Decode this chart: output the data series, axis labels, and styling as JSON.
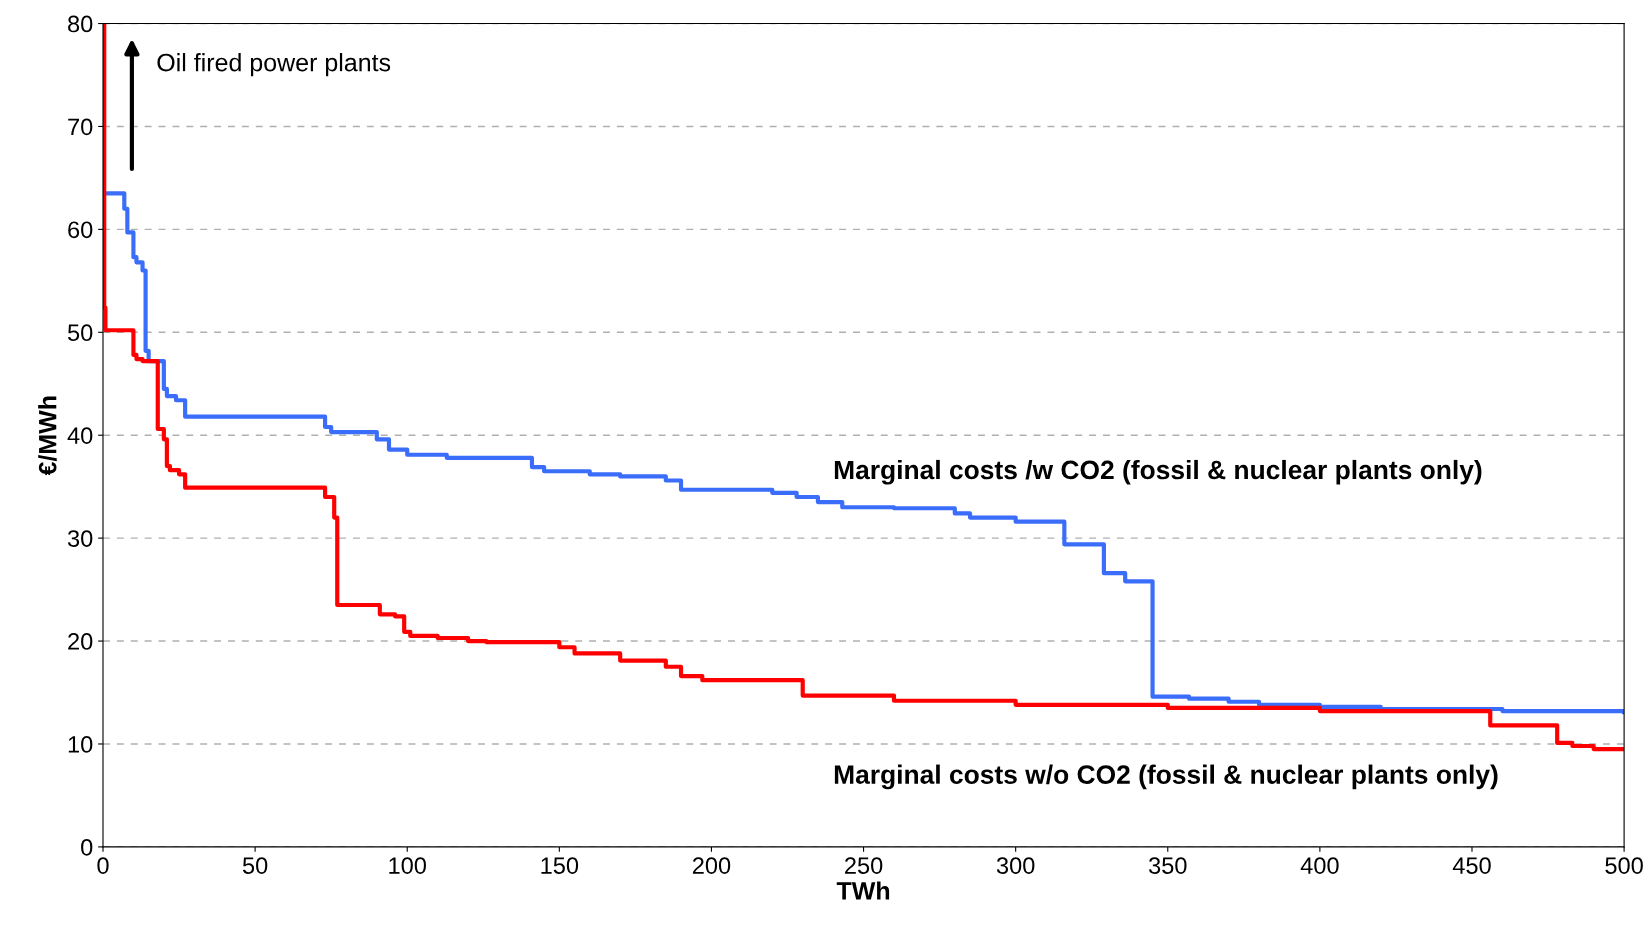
{
  "chart_data": {
    "type": "step",
    "xlabel": "TWh",
    "ylabel": "€/MWh",
    "xlim": [
      0,
      500
    ],
    "ylim": [
      0,
      80
    ],
    "xticks": [
      0,
      50,
      100,
      150,
      200,
      250,
      300,
      350,
      400,
      450,
      500
    ],
    "yticks": [
      0,
      10,
      20,
      30,
      40,
      50,
      60,
      70,
      80
    ],
    "grid": "y",
    "line_style": "solid",
    "marker": "none",
    "series": [
      {
        "name": "Marginal costs /w CO2 (fossil & nuclear plants only)",
        "color": "#3a6dfa",
        "x": [
          0,
          7,
          8,
          10,
          11,
          13,
          14,
          15,
          20,
          21,
          24,
          27,
          73,
          75,
          90,
          94,
          100,
          113,
          141,
          145,
          160,
          170,
          185,
          190,
          220,
          228,
          235,
          243,
          260,
          280,
          285,
          300,
          316,
          329,
          336,
          345,
          357,
          370,
          380,
          400,
          420,
          460,
          500
        ],
        "values": [
          63.5,
          62,
          59.7,
          57.3,
          56.8,
          56,
          48.2,
          47.2,
          44.5,
          43.8,
          43.4,
          41.8,
          40.8,
          40.3,
          39.6,
          38.6,
          38.1,
          37.8,
          36.9,
          36.5,
          36.2,
          36.0,
          35.6,
          34.7,
          34.4,
          34.0,
          33.5,
          33.0,
          32.9,
          32.4,
          32.0,
          31.6,
          29.4,
          26.6,
          25.8,
          14.6,
          14.4,
          14.1,
          13.8,
          13.6,
          13.4,
          13.2,
          13.1
        ]
      },
      {
        "name": "Marginal costs w/o CO2 (fossil & nuclear plants only)",
        "color": "#ff0000",
        "x": [
          0,
          0.4,
          0.8,
          10,
          11,
          13,
          18,
          20,
          21,
          22,
          25,
          27,
          73,
          76,
          77,
          91,
          96,
          99,
          101,
          110,
          120,
          126,
          150,
          155,
          170,
          185,
          190,
          197,
          230,
          260,
          300,
          350,
          400,
          456,
          478,
          483,
          490,
          500
        ],
        "values": [
          80,
          52.4,
          50.2,
          47.8,
          47.4,
          47.2,
          40.6,
          39.6,
          37,
          36.6,
          36.2,
          34.9,
          34,
          32,
          23.5,
          22.6,
          22.4,
          20.9,
          20.5,
          20.3,
          20.0,
          19.9,
          19.4,
          18.8,
          18.1,
          17.5,
          16.6,
          16.2,
          14.7,
          14.2,
          13.8,
          13.5,
          13.2,
          11.8,
          10.1,
          9.8,
          9.5,
          9.5
        ]
      }
    ],
    "annotations": [
      "Oil fired power plants"
    ]
  }
}
